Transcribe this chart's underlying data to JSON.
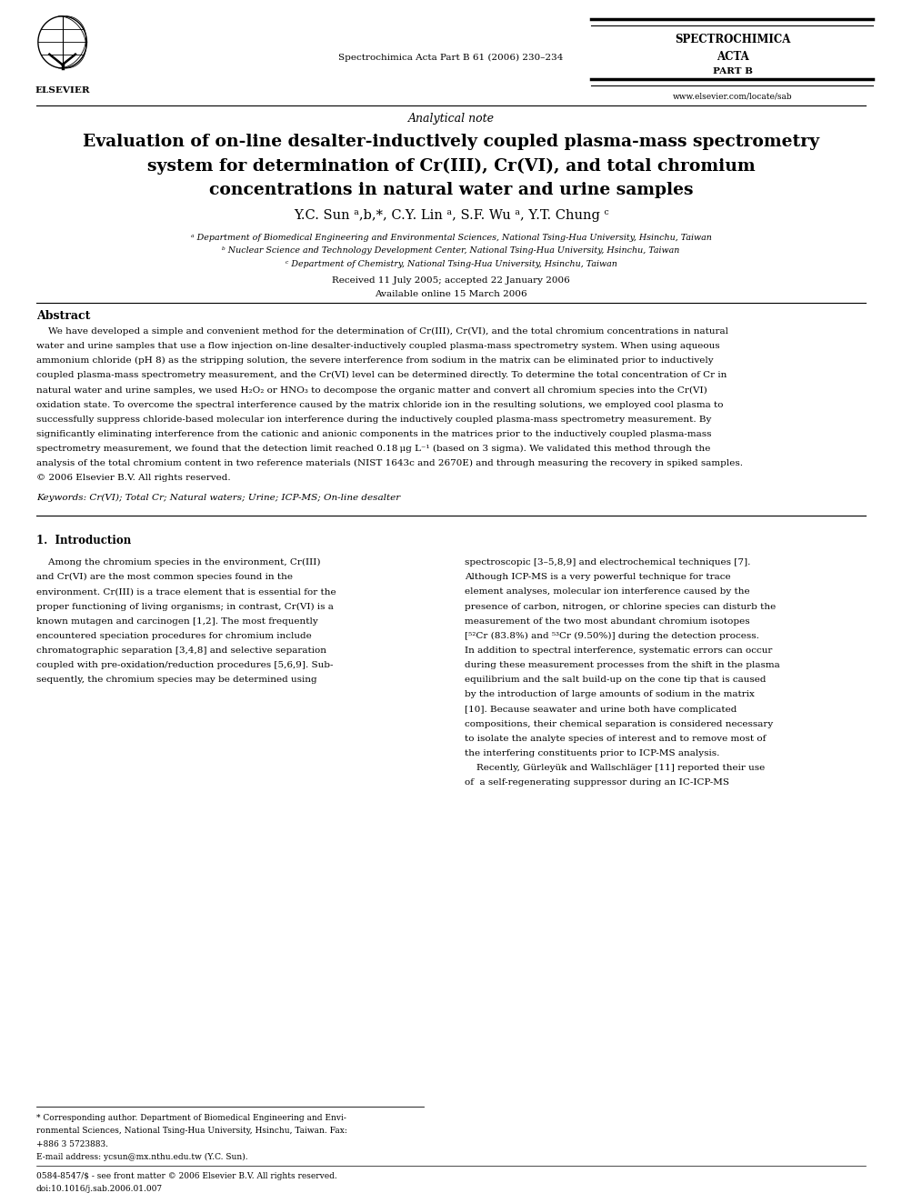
{
  "background_color": "#ffffff",
  "page_width": 9.92,
  "page_height": 13.23,
  "dpi": 100,
  "journal_name_line1": "SPECTROCHIMICA",
  "journal_name_line2": "ACTA",
  "journal_part": "PART B",
  "journal_url": "www.elsevier.com/locate/sab",
  "journal_citation": "Spectrochimica Acta Part B 61 (2006) 230–234",
  "section_label": "Analytical note",
  "title_line1": "Evaluation of on-line desalter-inductively coupled plasma-mass spectrometry",
  "title_line2": "system for determination of Cr(III), Cr(VI), and total chromium",
  "title_line3": "concentrations in natural water and urine samples",
  "authors": "Y.C. Sun ᵃ,b,*, C.Y. Lin ᵃ, S.F. Wu ᵃ, Y.T. Chung ᶜ",
  "affil_a": "ᵃ Department of Biomedical Engineering and Environmental Sciences, National Tsing-Hua University, Hsinchu, Taiwan",
  "affil_b": "ᵇ Nuclear Science and Technology Development Center, National Tsing-Hua University, Hsinchu, Taiwan",
  "affil_c": "ᶜ Department of Chemistry, National Tsing-Hua University, Hsinchu, Taiwan",
  "received": "Received 11 July 2005; accepted 22 January 2006",
  "available": "Available online 15 March 2006",
  "abstract_heading": "Abstract",
  "abstract_lines": [
    "    We have developed a simple and convenient method for the determination of Cr(III), Cr(VI), and the total chromium concentrations in natural",
    "water and urine samples that use a flow injection on-line desalter-inductively coupled plasma-mass spectrometry system. When using aqueous",
    "ammonium chloride (pH 8) as the stripping solution, the severe interference from sodium in the matrix can be eliminated prior to inductively",
    "coupled plasma-mass spectrometry measurement, and the Cr(VI) level can be determined directly. To determine the total concentration of Cr in",
    "natural water and urine samples, we used H₂O₂ or HNO₃ to decompose the organic matter and convert all chromium species into the Cr(VI)",
    "oxidation state. To overcome the spectral interference caused by the matrix chloride ion in the resulting solutions, we employed cool plasma to",
    "successfully suppress chloride-based molecular ion interference during the inductively coupled plasma-mass spectrometry measurement. By",
    "significantly eliminating interference from the cationic and anionic components in the matrices prior to the inductively coupled plasma-mass",
    "spectrometry measurement, we found that the detection limit reached 0.18 μg L⁻¹ (based on 3 sigma). We validated this method through the",
    "analysis of the total chromium content in two reference materials (NIST 1643c and 2670E) and through measuring the recovery in spiked samples.",
    "© 2006 Elsevier B.V. All rights reserved."
  ],
  "keywords": "Keywords: Cr(VI); Total Cr; Natural waters; Urine; ICP-MS; On-line desalter",
  "intro_heading": "1.  Introduction",
  "intro_col1_lines": [
    "    Among the chromium species in the environment, Cr(III)",
    "and Cr(VI) are the most common species found in the",
    "environment. Cr(III) is a trace element that is essential for the",
    "proper functioning of living organisms; in contrast, Cr(VI) is a",
    "known mutagen and carcinogen [1,2]. The most frequently",
    "encountered speciation procedures for chromium include",
    "chromatographic separation [3,4,8] and selective separation",
    "coupled with pre-oxidation/reduction procedures [5,6,9]. Sub-",
    "sequently, the chromium species may be determined using"
  ],
  "intro_col2_lines": [
    "spectroscopic [3–5,8,9] and electrochemical techniques [7].",
    "Although ICP-MS is a very powerful technique for trace",
    "element analyses, molecular ion interference caused by the",
    "presence of carbon, nitrogen, or chlorine species can disturb the",
    "measurement of the two most abundant chromium isotopes",
    "[⁵²Cr (83.8%) and ⁵³Cr (9.50%)] during the detection process.",
    "In addition to spectral interference, systematic errors can occur",
    "during these measurement processes from the shift in the plasma",
    "equilibrium and the salt build-up on the cone tip that is caused",
    "by the introduction of large amounts of sodium in the matrix",
    "[10]. Because seawater and urine both have complicated",
    "compositions, their chemical separation is considered necessary",
    "to isolate the analyte species of interest and to remove most of",
    "the interfering constituents prior to ICP-MS analysis.",
    "    Recently, Gürleyük and Wallschläger [11] reported their use",
    "of  a self-regenerating suppressor during an IC-ICP-MS"
  ],
  "footnote_lines": [
    "* Corresponding author. Department of Biomedical Engineering and Envi-",
    "ronmental Sciences, National Tsing-Hua University, Hsinchu, Taiwan. Fax:",
    "+886 3 5723883."
  ],
  "footnote_email": "E-mail address: ycsun@mx.nthu.edu.tw (Y.C. Sun).",
  "footer_left": "0584-8547/$ - see front matter © 2006 Elsevier B.V. All rights reserved.",
  "footer_doi": "doi:10.1016/j.sab.2006.01.007"
}
